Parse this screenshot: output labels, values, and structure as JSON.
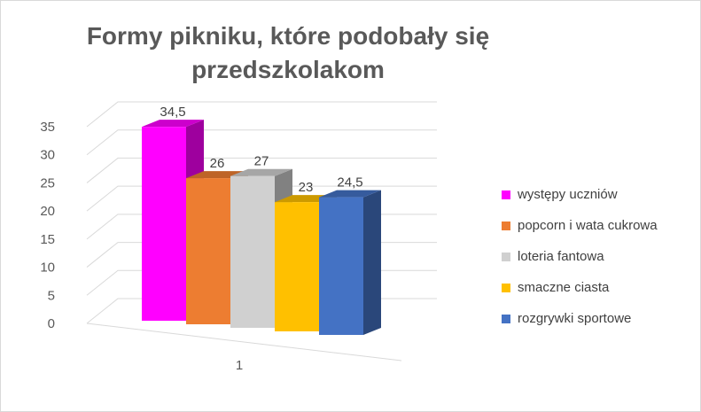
{
  "chart_data": {
    "type": "bar",
    "title": "Formy pikniku, które podobały się przedszkolakom",
    "categories": [
      "1"
    ],
    "series": [
      {
        "name": "występy uczniów",
        "values": [
          34.5
        ],
        "label": "34,5",
        "color": "#ff00ff"
      },
      {
        "name": "popcorn i wata cukrowa",
        "values": [
          26
        ],
        "label": "26",
        "color": "#ed7d31"
      },
      {
        "name": "loteria fantowa",
        "values": [
          27
        ],
        "label": "27",
        "color": "#d0d0d0"
      },
      {
        "name": "smaczne ciasta",
        "values": [
          23
        ],
        "label": "23",
        "color": "#ffc000"
      },
      {
        "name": "rozgrywki sportowe",
        "values": [
          24.5
        ],
        "label": "24,5",
        "color": "#4472c4"
      }
    ],
    "yticks": [
      "0",
      "5",
      "10",
      "15",
      "20",
      "25",
      "30",
      "35"
    ],
    "ylim": [
      0,
      35
    ],
    "grid": true,
    "legend_position": "right",
    "three_d": true
  }
}
